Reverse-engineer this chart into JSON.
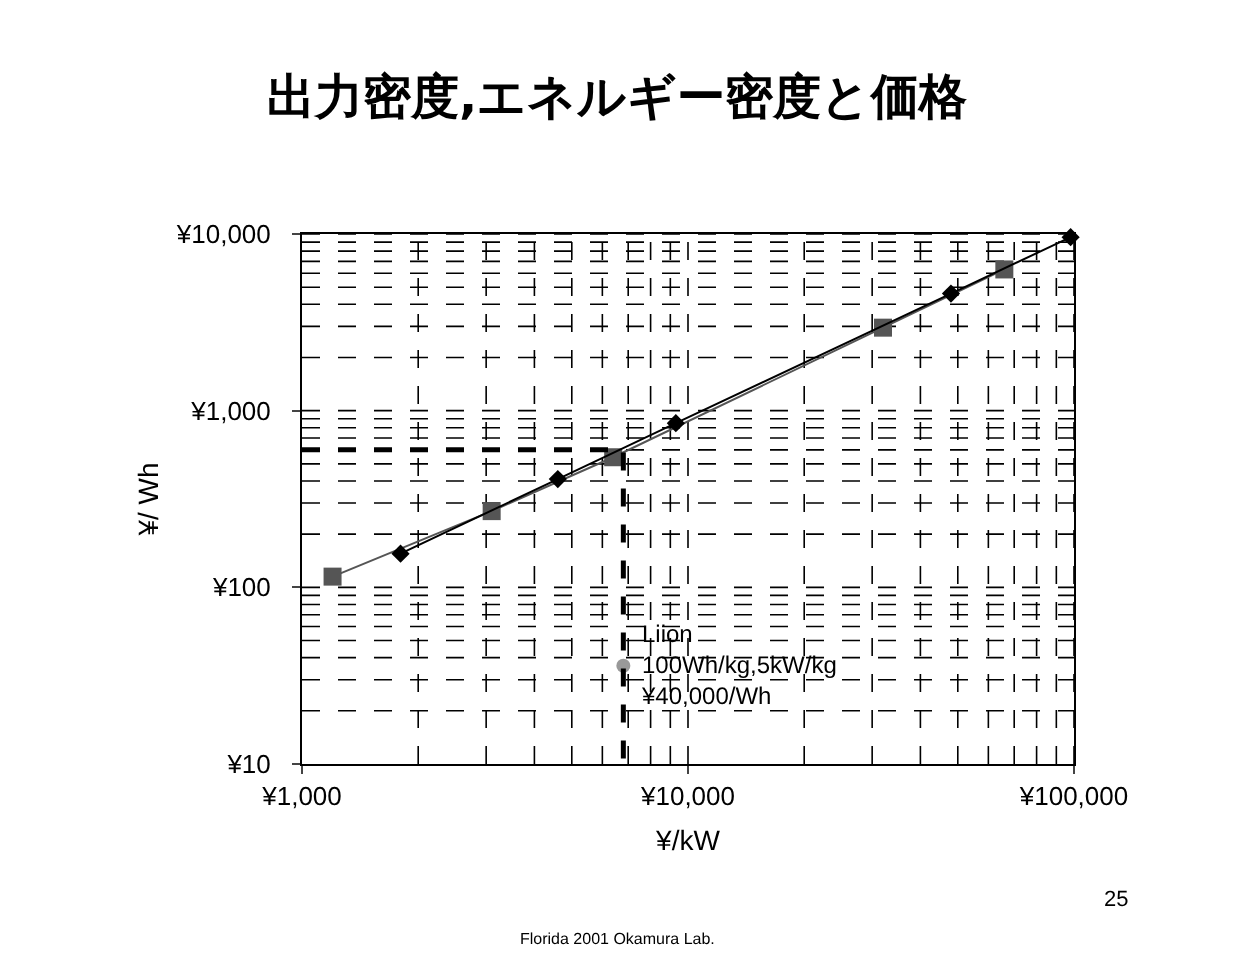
{
  "chart_data": {
    "type": "line",
    "title": "出力密度,エネルギー密度と価格",
    "xlabel": "¥/kW",
    "ylabel": "¥/ Wh",
    "log": "xy",
    "grid": true,
    "xlim": [
      1000,
      100000
    ],
    "xticks": [
      {
        "value": 1000,
        "label": "¥1,000"
      },
      {
        "value": 10000,
        "label": "¥10,000"
      },
      {
        "value": 100000,
        "label": "¥100,000"
      }
    ],
    "ylim": [
      10,
      10000
    ],
    "yticks": [
      {
        "value": 10,
        "label": "¥10"
      },
      {
        "value": 100,
        "label": "¥100"
      },
      {
        "value": 1000,
        "label": "¥1,000"
      },
      {
        "value": 10000,
        "label": "¥10,000"
      }
    ],
    "series": [
      {
        "color": "#555555",
        "marker": "square",
        "x": [
          1200,
          3100,
          6400,
          32000,
          66000
        ],
        "values": [
          115,
          270,
          545,
          2950,
          6300
        ]
      },
      {
        "color": "#000000",
        "marker": "diamond",
        "x": [
          1800,
          4600,
          9300,
          48000,
          98000
        ],
        "values": [
          155,
          410,
          850,
          4600,
          9600
        ]
      },
      {
        "type": "scatter",
        "color": "#999999",
        "marker": "circle",
        "x": [
          6800
        ],
        "values": [
          36
        ]
      },
      {
        "color": "#000000",
        "line_style": "dashed",
        "marker": "none",
        "x": [
          1000,
          6800,
          6800
        ],
        "values": [
          600,
          600,
          10
        ]
      }
    ],
    "annotations": [
      {
        "text": "Liion\n100Wh/kg,5kW/kg\n¥40,000/Wh",
        "x": 6800,
        "y": 36
      },
      "Florida 2001 Okamura Lab.",
      "25"
    ]
  }
}
